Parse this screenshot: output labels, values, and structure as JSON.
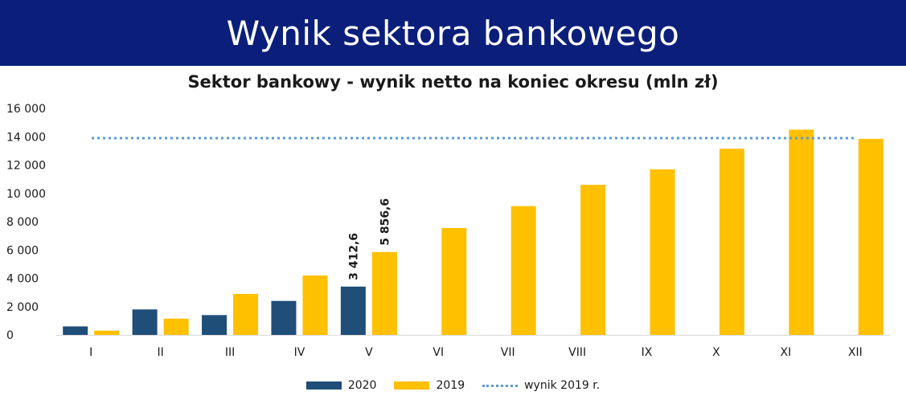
{
  "header": {
    "title": "Wynik sektora bankowego"
  },
  "colors": {
    "header_bg": "#0b1f7a",
    "series_2020": "#1f4e79",
    "series_2019": "#ffc000",
    "reference_line": "#5b9bd5"
  },
  "chart_data": {
    "type": "bar",
    "title": "Sektor bankowy - wynik netto na koniec okresu (mln zł)",
    "xlabel": "",
    "ylabel": "",
    "ylim": [
      0,
      16000
    ],
    "yticks": [
      "0",
      "2 000",
      "4 000",
      "6 000",
      "8 000",
      "10 000",
      "12 000",
      "14 000",
      "16 000"
    ],
    "ytick_values": [
      0,
      2000,
      4000,
      6000,
      8000,
      10000,
      12000,
      14000,
      16000
    ],
    "categories": [
      "I",
      "II",
      "III",
      "IV",
      "V",
      "VI",
      "VII",
      "VIII",
      "IX",
      "X",
      "XI",
      "XII"
    ],
    "series": [
      {
        "name": "2020",
        "values": [
          600,
          1800,
          1400,
          2400,
          3412.6,
          null,
          null,
          null,
          null,
          null,
          null,
          null
        ]
      },
      {
        "name": "2019",
        "values": [
          300,
          1150,
          2900,
          4200,
          5856.6,
          7550,
          9100,
          10600,
          11700,
          13150,
          14500,
          13850
        ]
      }
    ],
    "reference_line": {
      "name": "wynik 2019 r.",
      "value": 13900
    },
    "data_labels": [
      {
        "series": "2020",
        "category": "V",
        "text": "3 412,6"
      },
      {
        "series": "2019",
        "category": "V",
        "text": "5 856,6"
      }
    ],
    "legend": {
      "placement": "bottom",
      "items": [
        "2020",
        "2019",
        "wynik 2019 r."
      ]
    },
    "grid": false
  }
}
